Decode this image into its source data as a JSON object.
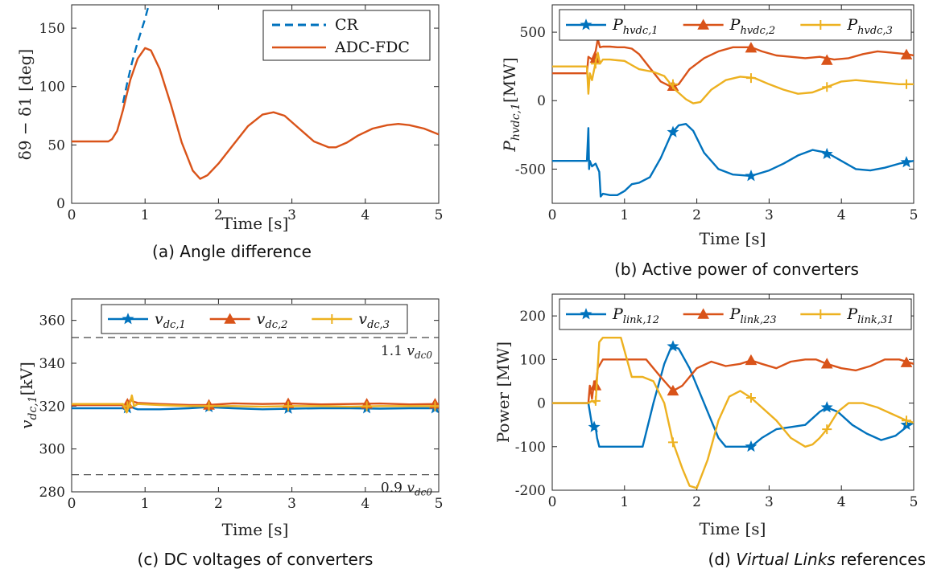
{
  "colors": {
    "blue": "#0072BD",
    "orange": "#D95319",
    "yellow": "#EDB120",
    "dash": "#444444"
  },
  "chart_data": [
    {
      "id": "a",
      "type": "line",
      "caption": "(a) Angle difference",
      "xlabel": "Time [s]",
      "ylabel": "δ9 − δ1 [deg]",
      "xlim": [
        0,
        5
      ],
      "ylim": [
        0,
        170
      ],
      "xticks": [
        "0",
        "1",
        "2",
        "3",
        "4",
        "5"
      ],
      "yticks": [
        "0",
        "50",
        "100",
        "150"
      ],
      "legend": "top-right",
      "series": [
        {
          "name": "CR",
          "color": "blue",
          "dash": true,
          "x": [
            0.7,
            0.76,
            0.82,
            0.88,
            0.94,
            1.0,
            1.05
          ],
          "y": [
            86,
            104,
            120,
            134,
            146,
            158,
            170
          ]
        },
        {
          "name": "ADC-FDC",
          "color": "orange",
          "x": [
            0,
            0.25,
            0.5,
            0.55,
            0.62,
            0.7,
            0.8,
            0.9,
            1.0,
            1.08,
            1.2,
            1.35,
            1.5,
            1.65,
            1.75,
            1.85,
            2.0,
            2.2,
            2.4,
            2.6,
            2.75,
            2.9,
            3.1,
            3.3,
            3.5,
            3.6,
            3.75,
            3.9,
            4.1,
            4.3,
            4.45,
            4.6,
            4.8,
            5.0
          ],
          "y": [
            53,
            53,
            53,
            55,
            62,
            80,
            106,
            124,
            133,
            131,
            115,
            85,
            52,
            28,
            21,
            24,
            34,
            50,
            66,
            76,
            78,
            75,
            64,
            53,
            48,
            48,
            52,
            58,
            64,
            67,
            68,
            67,
            64,
            59
          ]
        }
      ]
    },
    {
      "id": "b",
      "type": "line",
      "caption": "(b) Active power of converters",
      "xlabel": "Time [s]",
      "ylabel": "Phvdc,1[MW]",
      "xlim": [
        0,
        5
      ],
      "ylim": [
        -750,
        700
      ],
      "xticks": [
        "0",
        "1",
        "2",
        "3",
        "4",
        "5"
      ],
      "yticks": [
        "-500",
        "0",
        "500"
      ],
      "legend": "top",
      "series": [
        {
          "name": "Phvdc,1",
          "color": "blue",
          "marker": "star",
          "x": [
            0,
            0.48,
            0.5,
            0.51,
            0.52,
            0.55,
            0.6,
            0.65,
            0.67,
            0.7,
            0.8,
            0.9,
            1.0,
            1.1,
            1.2,
            1.35,
            1.5,
            1.65,
            1.75,
            1.85,
            1.95,
            2.1,
            2.3,
            2.5,
            2.75,
            3.0,
            3.2,
            3.4,
            3.6,
            3.8,
            4.0,
            4.2,
            4.4,
            4.6,
            4.8,
            5.0
          ],
          "y": [
            -440,
            -440,
            -200,
            -500,
            -440,
            -480,
            -460,
            -520,
            -700,
            -680,
            -690,
            -690,
            -660,
            -610,
            -600,
            -560,
            -420,
            -240,
            -180,
            -170,
            -220,
            -380,
            -500,
            -540,
            -550,
            -510,
            -460,
            -400,
            -360,
            -380,
            -440,
            -500,
            -510,
            -490,
            -460,
            -440
          ],
          "markers": [
            [
              1.67,
              -230
            ],
            [
              2.75,
              -550
            ],
            [
              3.8,
              -390
            ],
            [
              4.9,
              -450
            ]
          ]
        },
        {
          "name": "Phvdc,2",
          "color": "orange",
          "marker": "triangle",
          "x": [
            0,
            0.48,
            0.5,
            0.55,
            0.6,
            0.63,
            0.66,
            0.7,
            0.8,
            0.9,
            1.0,
            1.1,
            1.2,
            1.35,
            1.5,
            1.65,
            1.75,
            1.9,
            2.1,
            2.3,
            2.5,
            2.75,
            2.9,
            3.1,
            3.3,
            3.5,
            3.7,
            3.9,
            4.1,
            4.3,
            4.5,
            4.7,
            4.9,
            5.0
          ],
          "y": [
            200,
            200,
            320,
            300,
            360,
            450,
            390,
            395,
            395,
            390,
            390,
            380,
            340,
            240,
            140,
            100,
            120,
            230,
            310,
            360,
            390,
            390,
            360,
            330,
            320,
            310,
            320,
            300,
            310,
            340,
            360,
            350,
            340,
            330
          ],
          "markers": [
            [
              0.6,
              310
            ],
            [
              1.67,
              105
            ],
            [
              2.75,
              385
            ],
            [
              3.8,
              295
            ],
            [
              4.9,
              335
            ]
          ]
        },
        {
          "name": "Phvdc,3",
          "color": "yellow",
          "marker": "plus",
          "x": [
            0,
            0.48,
            0.5,
            0.52,
            0.55,
            0.6,
            0.63,
            0.66,
            0.7,
            0.8,
            0.9,
            1.0,
            1.1,
            1.2,
            1.4,
            1.55,
            1.7,
            1.85,
            1.95,
            2.05,
            2.2,
            2.4,
            2.6,
            2.8,
            3.0,
            3.2,
            3.4,
            3.6,
            3.8,
            4.0,
            4.2,
            4.4,
            4.6,
            4.8,
            5.0
          ],
          "y": [
            250,
            250,
            50,
            200,
            150,
            280,
            350,
            270,
            300,
            300,
            295,
            290,
            260,
            230,
            210,
            180,
            80,
            10,
            -20,
            -10,
            80,
            150,
            175,
            165,
            120,
            80,
            50,
            60,
            100,
            140,
            150,
            140,
            130,
            120,
            120
          ],
          "markers": [
            [
              0.6,
              270
            ],
            [
              1.67,
              120
            ],
            [
              2.75,
              165
            ],
            [
              3.8,
              100
            ],
            [
              4.9,
              120
            ]
          ]
        }
      ]
    },
    {
      "id": "c",
      "type": "line",
      "caption": "(c) DC voltages of converters",
      "xlabel": "Time [s]",
      "ylabel": "vdc,1[kV]",
      "xlim": [
        0,
        5
      ],
      "ylim": [
        280,
        370
      ],
      "xticks": [
        "0",
        "1",
        "2",
        "3",
        "4",
        "5"
      ],
      "yticks": [
        "280",
        "300",
        "320",
        "340",
        "360"
      ],
      "legend": "top",
      "reference_lines": [
        {
          "y": 352,
          "label_value": "1.1",
          "label_var": "vdc0"
        },
        {
          "y": 288,
          "label_value": "0.9",
          "label_var": "vdc0"
        }
      ],
      "series": [
        {
          "name": "vdc,1",
          "color": "blue",
          "marker": "star",
          "x": [
            0,
            0.7,
            0.75,
            0.8,
            0.85,
            0.9,
            1.2,
            1.6,
            1.85,
            2.2,
            2.6,
            3.0,
            3.4,
            3.8,
            4.2,
            4.6,
            5.0
          ],
          "y": [
            319,
            319,
            318,
            320,
            319,
            318.5,
            318.5,
            319,
            319.5,
            319,
            318.5,
            318.8,
            319,
            319,
            318.8,
            319,
            319
          ],
          "markers": [
            [
              0.76,
              319
            ],
            [
              1.87,
              319.5
            ],
            [
              2.95,
              318.8
            ],
            [
              4.02,
              319
            ],
            [
              4.95,
              319
            ]
          ]
        },
        {
          "name": "vdc,2",
          "color": "orange",
          "marker": "triangle",
          "x": [
            0,
            0.7,
            0.75,
            0.8,
            0.85,
            0.9,
            1.2,
            1.6,
            1.85,
            2.2,
            2.6,
            3.0,
            3.4,
            3.8,
            4.2,
            4.6,
            5.0
          ],
          "y": [
            320.5,
            320.5,
            318,
            323,
            322,
            321.5,
            321,
            320.5,
            320.5,
            321.3,
            321,
            321.2,
            320.8,
            321,
            321.2,
            320.8,
            321
          ],
          "markers": [
            [
              0.76,
              321
            ],
            [
              1.87,
              320.5
            ],
            [
              2.95,
              321.2
            ],
            [
              4.02,
              321
            ],
            [
              4.95,
              321
            ]
          ]
        },
        {
          "name": "vdc,3",
          "color": "yellow",
          "marker": "plus",
          "x": [
            0,
            0.7,
            0.75,
            0.8,
            0.82,
            0.85,
            0.9,
            1.2,
            1.6,
            1.85,
            2.2,
            2.6,
            3.0,
            3.4,
            3.8,
            4.2,
            4.6,
            5.0
          ],
          "y": [
            321,
            321,
            317,
            322,
            325,
            320,
            321,
            320.5,
            320,
            320,
            320,
            319.8,
            320,
            320,
            319.8,
            320,
            320,
            320
          ],
          "markers": [
            [
              0.76,
              320
            ],
            [
              1.87,
              320
            ],
            [
              2.95,
              320
            ],
            [
              4.02,
              320
            ],
            [
              4.95,
              320
            ]
          ]
        }
      ]
    },
    {
      "id": "d",
      "type": "line",
      "caption_prefix": "(d) ",
      "caption_italic": "Virtual Links",
      "caption_suffix": " references",
      "xlabel": "Time [s]",
      "ylabel": "Power [MW]",
      "xlim": [
        0,
        5
      ],
      "ylim": [
        -200,
        250
      ],
      "xticks": [
        "0",
        "1",
        "2",
        "3",
        "4",
        "5"
      ],
      "yticks": [
        "-200",
        "-100",
        "0",
        "100",
        "200"
      ],
      "legend": "top",
      "series": [
        {
          "name": "Plink,12",
          "color": "blue",
          "marker": "star",
          "x": [
            0,
            0.5,
            0.52,
            0.55,
            0.6,
            0.62,
            0.65,
            1.0,
            1.25,
            1.4,
            1.55,
            1.65,
            1.75,
            1.9,
            2.1,
            2.3,
            2.4,
            2.75,
            2.9,
            3.1,
            3.3,
            3.5,
            3.7,
            3.8,
            3.95,
            4.15,
            4.35,
            4.55,
            4.75,
            4.9,
            5.0
          ],
          "y": [
            0,
            0,
            -20,
            -50,
            -55,
            -80,
            -100,
            -100,
            -100,
            0,
            90,
            130,
            125,
            80,
            0,
            -80,
            -100,
            -100,
            -80,
            -60,
            -55,
            -50,
            -20,
            -10,
            -20,
            -50,
            -70,
            -85,
            -75,
            -55,
            -45
          ],
          "markers": [
            [
              0.58,
              -55
            ],
            [
              1.67,
              130
            ],
            [
              2.75,
              -100
            ],
            [
              3.8,
              -10
            ],
            [
              4.9,
              -50
            ]
          ]
        },
        {
          "name": "Plink,23",
          "color": "orange",
          "marker": "triangle",
          "x": [
            0,
            0.5,
            0.52,
            0.55,
            0.58,
            0.6,
            0.63,
            0.7,
            1.0,
            1.3,
            1.5,
            1.67,
            1.8,
            2.0,
            2.2,
            2.4,
            2.6,
            2.75,
            2.9,
            3.1,
            3.3,
            3.5,
            3.65,
            3.8,
            4.0,
            4.2,
            4.4,
            4.6,
            4.8,
            5.0
          ],
          "y": [
            0,
            0,
            40,
            10,
            50,
            30,
            80,
            100,
            100,
            100,
            60,
            28,
            40,
            80,
            95,
            85,
            90,
            98,
            90,
            80,
            95,
            100,
            100,
            90,
            80,
            75,
            85,
            100,
            100,
            90
          ],
          "markers": [
            [
              0.6,
              40
            ],
            [
              1.67,
              28
            ],
            [
              2.75,
              98
            ],
            [
              3.8,
              90
            ],
            [
              4.9,
              93
            ]
          ]
        },
        {
          "name": "Plink,31",
          "color": "yellow",
          "marker": "plus",
          "x": [
            0,
            0.5,
            0.55,
            0.6,
            0.65,
            0.7,
            0.95,
            1.1,
            1.25,
            1.4,
            1.55,
            1.67,
            1.8,
            1.9,
            2.0,
            2.15,
            2.3,
            2.45,
            2.6,
            2.75,
            2.9,
            3.1,
            3.3,
            3.5,
            3.6,
            3.7,
            3.8,
            3.95,
            4.1,
            4.3,
            4.5,
            4.7,
            4.9,
            5.0
          ],
          "y": [
            0,
            0,
            5,
            0,
            140,
            150,
            150,
            60,
            60,
            50,
            0,
            -90,
            -150,
            -190,
            -195,
            -130,
            -40,
            15,
            28,
            12,
            -10,
            -40,
            -80,
            -100,
            -95,
            -80,
            -60,
            -20,
            0,
            0,
            -10,
            -25,
            -40,
            -45
          ],
          "markers": [
            [
              0.6,
              5
            ],
            [
              1.67,
              -90
            ],
            [
              2.75,
              12
            ],
            [
              3.8,
              -60
            ],
            [
              4.9,
              -40
            ]
          ]
        }
      ]
    }
  ]
}
